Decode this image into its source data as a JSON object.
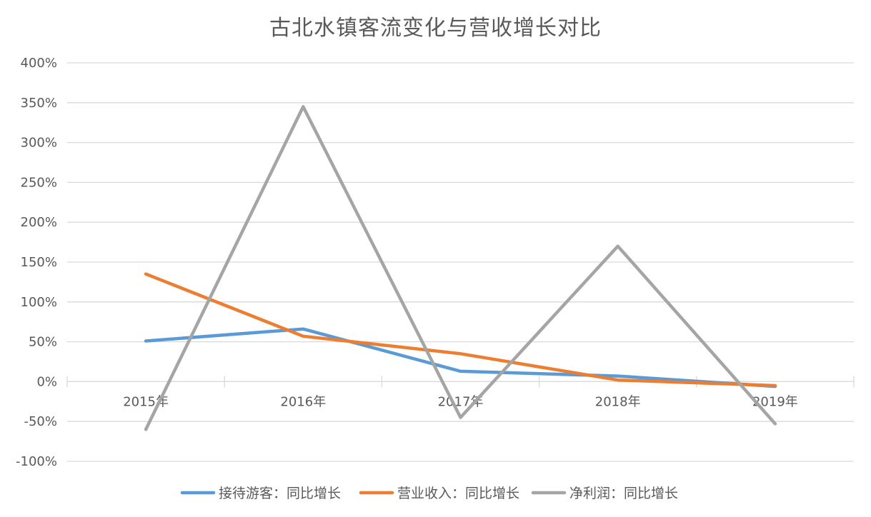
{
  "chart_data": {
    "type": "line",
    "title": "古北水镇客流变化与营收增长对比",
    "categories": [
      "2015年",
      "2016年",
      "2017年",
      "2018年",
      "2019年"
    ],
    "ylim": [
      -100,
      400
    ],
    "yticks": [
      400,
      350,
      300,
      250,
      200,
      150,
      100,
      50,
      0,
      -50,
      -100
    ],
    "ytick_labels": [
      "400%",
      "350%",
      "300%",
      "250%",
      "200%",
      "150%",
      "100%",
      "50%",
      "0%",
      "-50%",
      "-100%"
    ],
    "grid": true,
    "legend_position": "bottom",
    "series": [
      {
        "name": "接待游客：同比增长",
        "color": "#5B9BD5",
        "values": [
          51,
          66,
          13,
          7,
          -6
        ]
      },
      {
        "name": "营业收入：同比增长",
        "color": "#ED7D31",
        "values": [
          135,
          57,
          35,
          2,
          -5
        ]
      },
      {
        "name": "净利润：同比增长",
        "color": "#A5A5A5",
        "values": [
          -60,
          345,
          -45,
          170,
          -53
        ]
      }
    ]
  }
}
